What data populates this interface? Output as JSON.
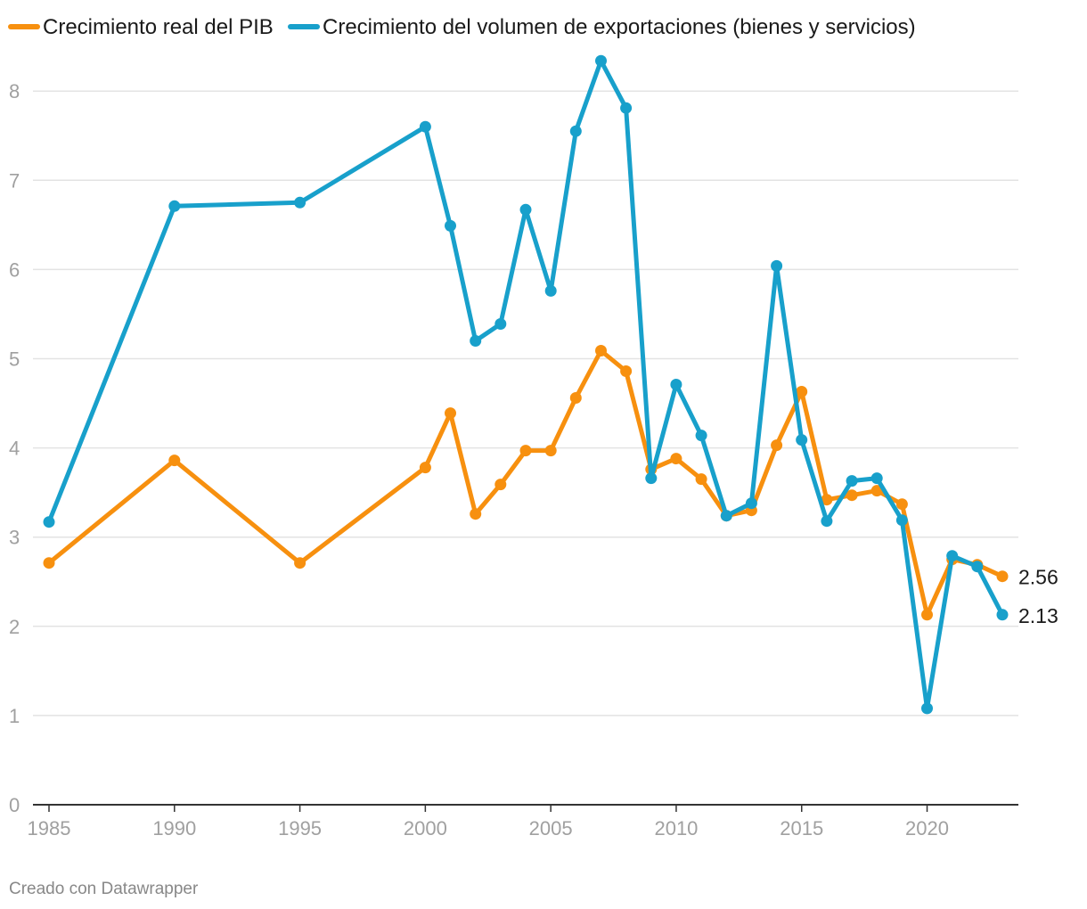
{
  "chart_data": {
    "type": "line",
    "title": "",
    "xlabel": "",
    "ylabel": "",
    "xlim": [
      1985,
      2023
    ],
    "ylim": [
      0,
      8.4
    ],
    "x_ticks": [
      1985,
      1990,
      1995,
      2000,
      2005,
      2010,
      2015,
      2020
    ],
    "y_ticks": [
      0,
      1,
      2,
      3,
      4,
      5,
      6,
      7,
      8
    ],
    "grid": true,
    "legend": "top-left",
    "series": [
      {
        "name": "Crecimiento real del PIB",
        "color": "#f7900f",
        "end_label": "2.56",
        "points": [
          [
            1985,
            2.71
          ],
          [
            1990,
            3.86
          ],
          [
            1995,
            2.71
          ],
          [
            2000,
            3.78
          ],
          [
            2001,
            4.39
          ],
          [
            2002,
            3.26
          ],
          [
            2003,
            3.59
          ],
          [
            2004,
            3.97
          ],
          [
            2005,
            3.97
          ],
          [
            2006,
            4.56
          ],
          [
            2007,
            5.09
          ],
          [
            2008,
            4.86
          ],
          [
            2009,
            3.76
          ],
          [
            2010,
            3.88
          ],
          [
            2011,
            3.65
          ],
          [
            2012,
            3.24
          ],
          [
            2013,
            3.3
          ],
          [
            2014,
            4.03
          ],
          [
            2015,
            4.63
          ],
          [
            2016,
            3.42
          ],
          [
            2017,
            3.47
          ],
          [
            2018,
            3.52
          ],
          [
            2019,
            3.37
          ],
          [
            2020,
            2.13
          ],
          [
            2021,
            2.75
          ],
          [
            2022,
            2.69
          ],
          [
            2023,
            2.56
          ]
        ]
      },
      {
        "name": "Crecimiento del volumen de exportaciones (bienes y servicios)",
        "color": "#18a0cb",
        "end_label": "2.13",
        "points": [
          [
            1985,
            3.17
          ],
          [
            1990,
            6.71
          ],
          [
            1995,
            6.75
          ],
          [
            2000,
            7.6
          ],
          [
            2001,
            6.49
          ],
          [
            2002,
            5.2
          ],
          [
            2003,
            5.39
          ],
          [
            2004,
            6.67
          ],
          [
            2005,
            5.76
          ],
          [
            2006,
            7.55
          ],
          [
            2007,
            8.34
          ],
          [
            2008,
            7.81
          ],
          [
            2009,
            3.66
          ],
          [
            2010,
            4.71
          ],
          [
            2011,
            4.14
          ],
          [
            2012,
            3.24
          ],
          [
            2013,
            3.38
          ],
          [
            2014,
            6.04
          ],
          [
            2015,
            4.09
          ],
          [
            2016,
            3.18
          ],
          [
            2017,
            3.63
          ],
          [
            2018,
            3.66
          ],
          [
            2019,
            3.19
          ],
          [
            2020,
            1.08
          ],
          [
            2021,
            2.79
          ],
          [
            2022,
            2.67
          ],
          [
            2023,
            2.13
          ]
        ]
      }
    ]
  },
  "footer": {
    "credit": "Creado con Datawrapper"
  }
}
